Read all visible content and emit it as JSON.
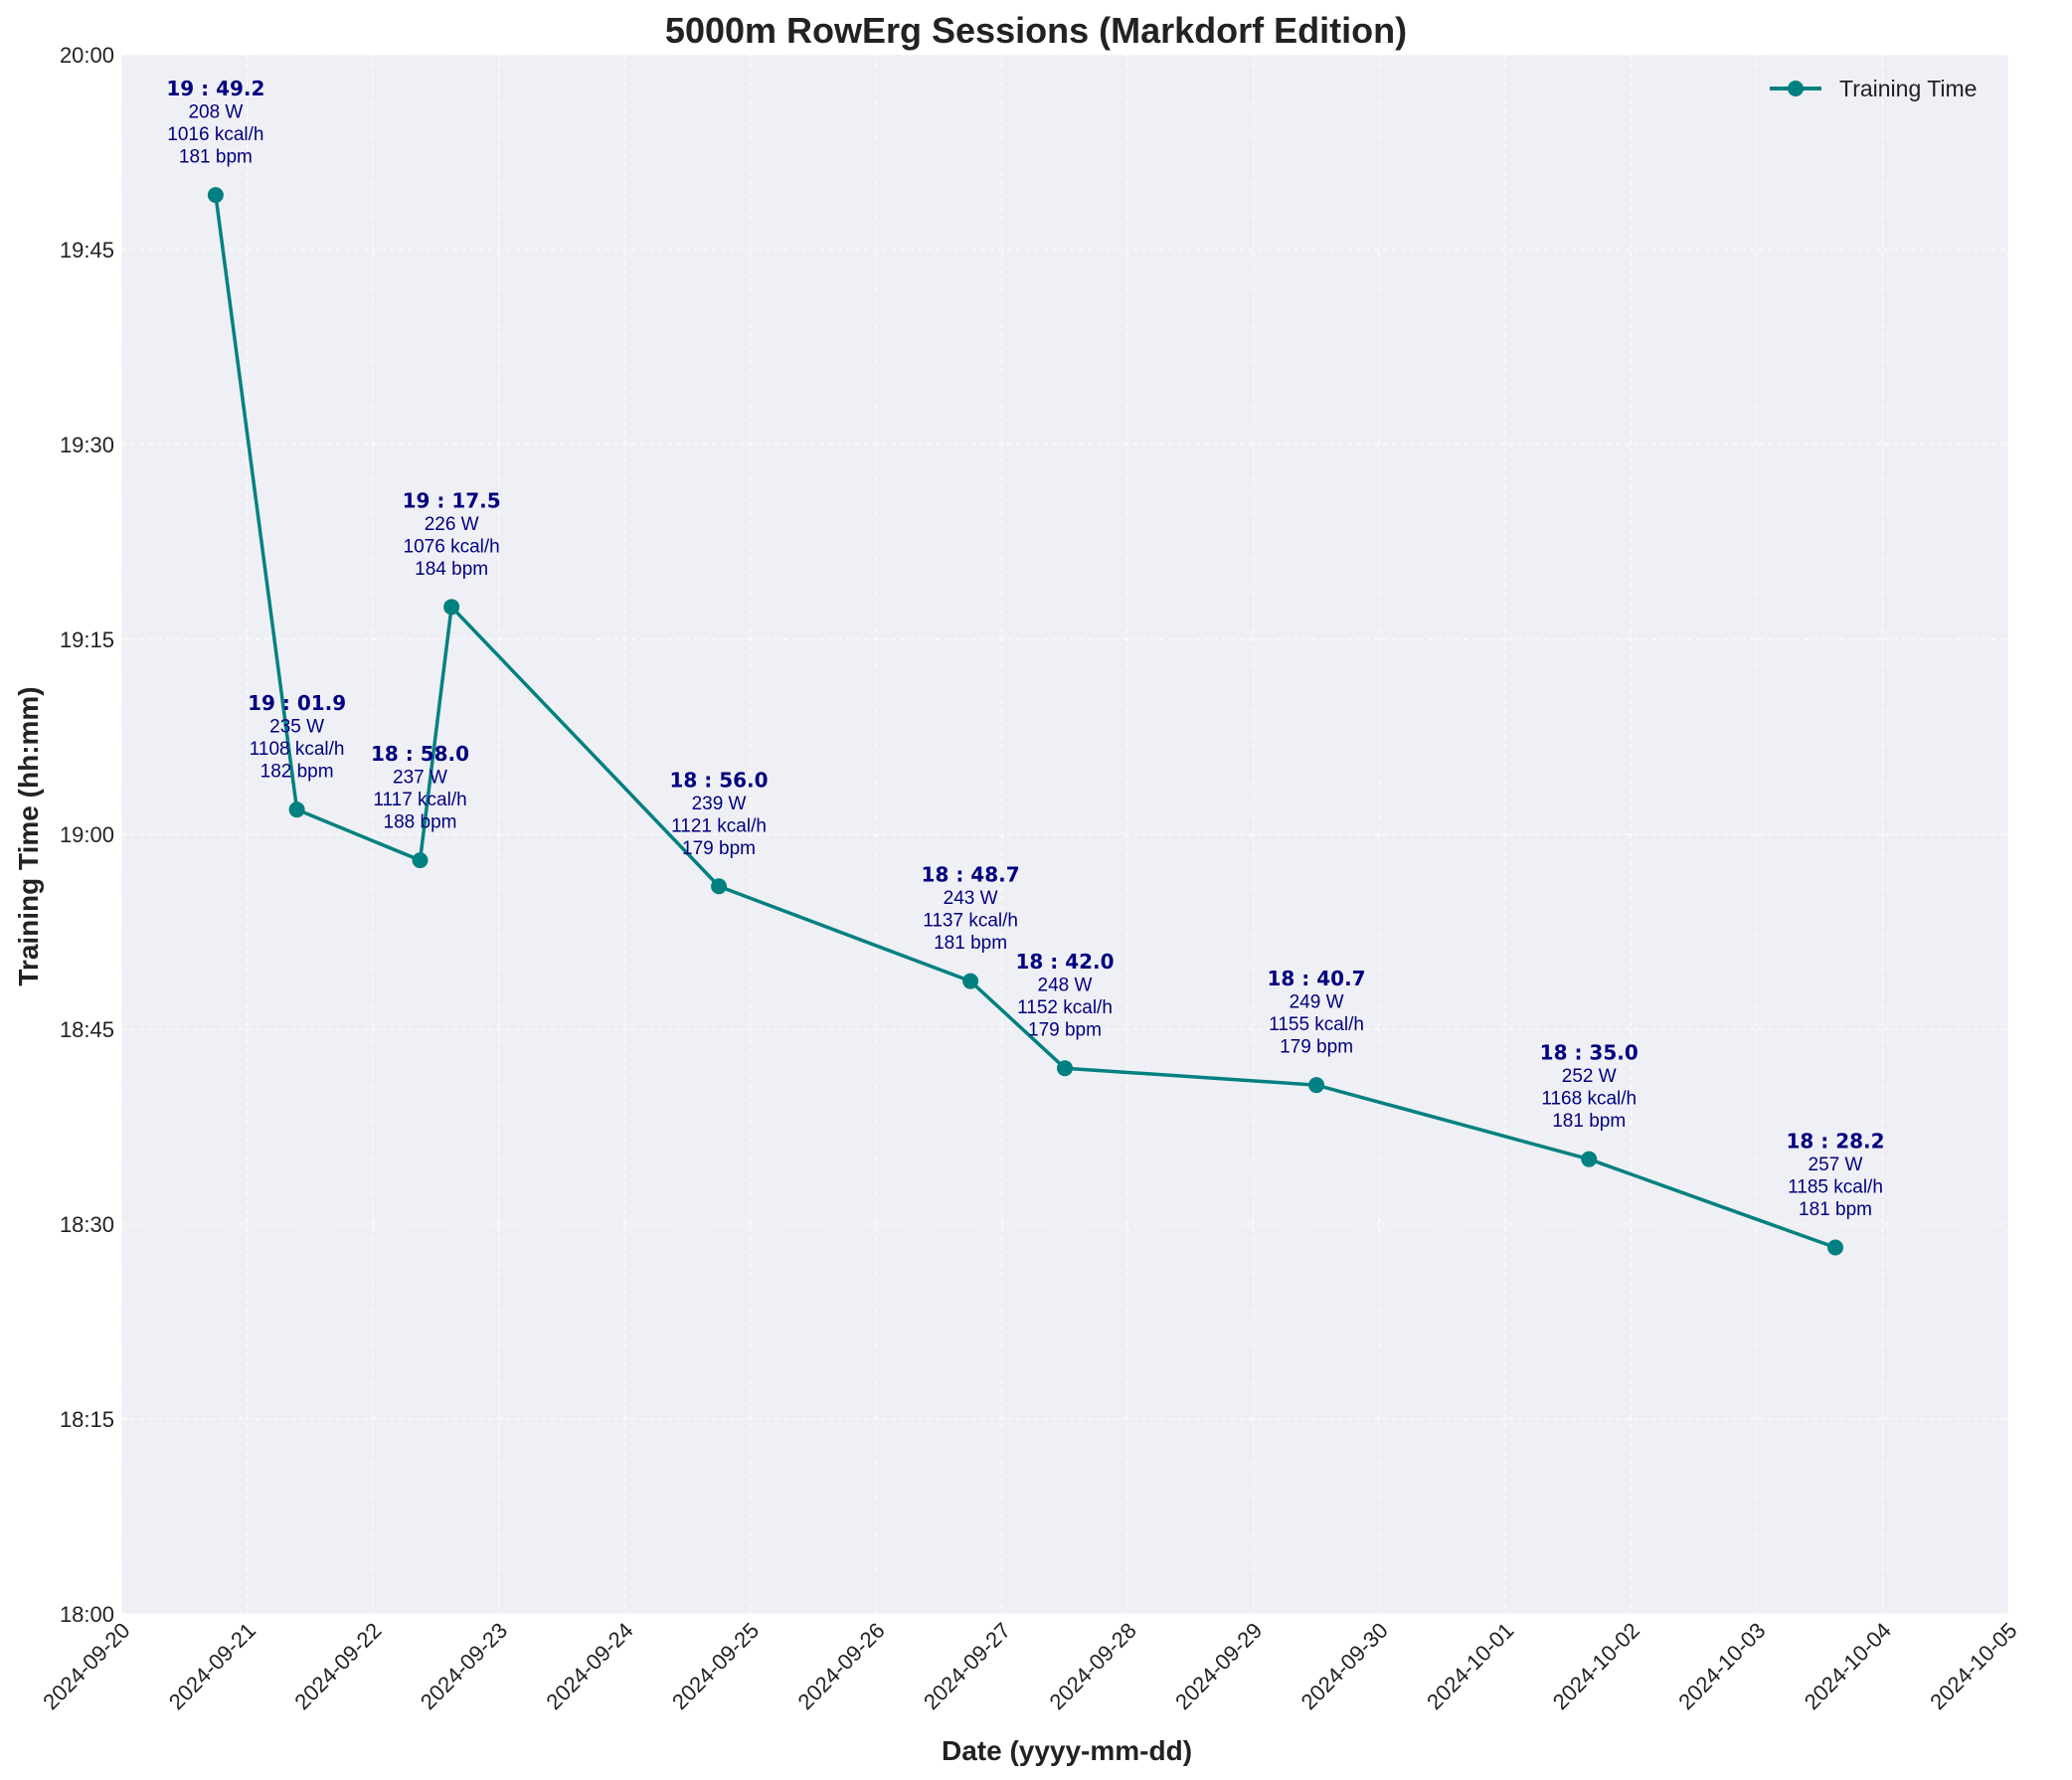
{
  "chart_data": {
    "type": "line",
    "title": "5000m RowErg Sessions (Markdorf Edition)",
    "xlabel": "Date (yyyy-mm-dd)",
    "ylabel": "Training Time (hh:mm)",
    "xlim": [
      "2024-09-20",
      "2024-10-05"
    ],
    "ylim": [
      "18:00",
      "20:00"
    ],
    "x_ticks": [
      "2024-09-20",
      "2024-09-21",
      "2024-09-22",
      "2024-09-23",
      "2024-09-24",
      "2024-09-25",
      "2024-09-26",
      "2024-09-27",
      "2024-09-28",
      "2024-09-29",
      "2024-09-30",
      "2024-10-01",
      "2024-10-02",
      "2024-10-03",
      "2024-10-04",
      "2024-10-05"
    ],
    "y_ticks": [
      "18:00",
      "18:15",
      "18:30",
      "18:45",
      "19:00",
      "19:15",
      "19:30",
      "19:45",
      "20:00"
    ],
    "grid": true,
    "legend_position": "top-right",
    "colors": {
      "line": "#008080",
      "annotation": "#000080",
      "plot_background": "#eff0f5",
      "grid": "#ffffff"
    },
    "series": [
      {
        "name": "Training Time",
        "points": [
          {
            "x": "2024-09-20 18:00",
            "y": "19:49.2",
            "power": "208 W",
            "energy": "1016 kcal/h",
            "hr": "181 bpm"
          },
          {
            "x": "2024-09-21 09:30",
            "y": "19:01.9",
            "power": "235 W",
            "energy": "1108 kcal/h",
            "hr": "182 bpm"
          },
          {
            "x": "2024-09-22 09:00",
            "y": "18:58.0",
            "power": "237 W",
            "energy": "1117 kcal/h",
            "hr": "188 bpm"
          },
          {
            "x": "2024-09-22 15:00",
            "y": "19:17.5",
            "power": "226 W",
            "energy": "1076 kcal/h",
            "hr": "184 bpm"
          },
          {
            "x": "2024-09-24 18:00",
            "y": "18:56.0",
            "power": "239 W",
            "energy": "1121 kcal/h",
            "hr": "179 bpm"
          },
          {
            "x": "2024-09-26 18:00",
            "y": "18:48.7",
            "power": "243 W",
            "energy": "1137 kcal/h",
            "hr": "181 bpm"
          },
          {
            "x": "2024-09-27 12:00",
            "y": "18:42.0",
            "power": "248 W",
            "energy": "1152 kcal/h",
            "hr": "179 bpm"
          },
          {
            "x": "2024-09-29 12:00",
            "y": "18:40.7",
            "power": "249 W",
            "energy": "1155 kcal/h",
            "hr": "179 bpm"
          },
          {
            "x": "2024-10-01 16:00",
            "y": "18:35.0",
            "power": "252 W",
            "energy": "1168 kcal/h",
            "hr": "181 bpm"
          },
          {
            "x": "2024-10-03 15:00",
            "y": "18:28.2",
            "power": "257 W",
            "energy": "1185 kcal/h",
            "hr": "181 bpm"
          }
        ]
      }
    ]
  }
}
